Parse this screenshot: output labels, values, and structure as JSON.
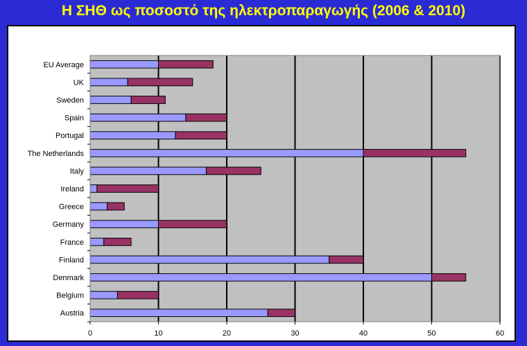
{
  "title": "Η ΣΗΘ ως ποσοστό της ηλεκτροπαραγωγής (2006 & 2010)",
  "colors": {
    "background": "#2b2bd6",
    "title": "#ffff00",
    "plot_area": "#c0c0c0",
    "series_1": "#9999ff",
    "series_2": "#993366"
  },
  "chart_data": {
    "type": "bar",
    "orientation": "horizontal",
    "stacked": true,
    "categories": [
      "Austria",
      "Belgium",
      "Denmark",
      "Finland",
      "France",
      "Germany",
      "Greece",
      "Ireland",
      "Italy",
      "The Netherlands",
      "Portugal",
      "Spain",
      "Sweden",
      "UK",
      "EU Average"
    ],
    "series": [
      {
        "values": [
          26,
          4,
          50,
          35,
          2,
          10,
          2.5,
          1,
          17,
          40,
          12.5,
          14,
          6,
          5.5,
          10
        ]
      },
      {
        "values": [
          4,
          6,
          5,
          5,
          4,
          10,
          2.5,
          9,
          8,
          15,
          7.5,
          6,
          5,
          9.5,
          8
        ]
      }
    ],
    "xlim": [
      0,
      60
    ],
    "xticks": [
      "0",
      "10",
      "20",
      "30",
      "40",
      "50",
      "60"
    ],
    "grid": "vertical",
    "legend": "none"
  }
}
